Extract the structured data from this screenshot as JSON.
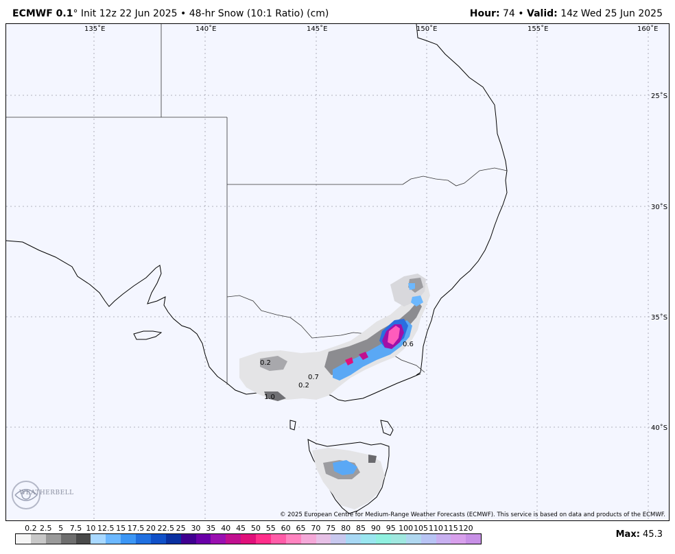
{
  "header": {
    "model": "ECMWF 0.1",
    "degree": "°",
    "init": "Init 12z 22 Jun 2025",
    "sep": "•",
    "product": "48-hr Snow (10:1 Ratio) (cm)",
    "hour_label": "Hour:",
    "hour": "74",
    "valid_label": "Valid:",
    "valid": "14z Wed 25 Jun 2025"
  },
  "map": {
    "lon_labels": [
      "135˚E",
      "140˚E",
      "145˚E",
      "150˚E",
      "155˚E",
      "160˚E"
    ],
    "lat_labels": [
      "25˚S",
      "30˚S",
      "35˚S",
      "40˚S"
    ],
    "annotations": [
      "0.2",
      "0.7",
      "0.2",
      "1.0",
      "0.6"
    ]
  },
  "legend": {
    "values": [
      "0.2",
      "2.5",
      "5",
      "7.5",
      "10",
      "12.5",
      "15",
      "17.5",
      "20",
      "22.5",
      "25",
      "30",
      "35",
      "40",
      "45",
      "50",
      "55",
      "60",
      "65",
      "70",
      "75",
      "80",
      "85",
      "90",
      "95",
      "100",
      "105",
      "110",
      "115",
      "120"
    ],
    "colors": [
      "#f5f5f5",
      "#c8c8c8",
      "#9a9a9a",
      "#6e6e6e",
      "#4a4a4a",
      "#a8d8ff",
      "#6cb8ff",
      "#3c96f5",
      "#2070e0",
      "#1050c8",
      "#0a30a0",
      "#400090",
      "#6a00a8",
      "#9a10b0",
      "#c0108f",
      "#e0107a",
      "#ff2e8a",
      "#ff5ca8",
      "#ff84c0",
      "#f4a8d8",
      "#e6c0e6",
      "#c8c8ee",
      "#a8d8f4",
      "#9ae6f0",
      "#90f0e0",
      "#a0e8e0",
      "#b0d8f0",
      "#b8c4f4",
      "#c8b0f0",
      "#d8a0ec",
      "#c890e6"
    ]
  },
  "max": {
    "label": "Max:",
    "value": "45.3"
  },
  "copyright": "© 2025 European Centre for Medium-Range Weather Forecasts (ECMWF). This service is based on data and products of the ECMWF.",
  "logo": {
    "text": "WEATHERBELL"
  }
}
